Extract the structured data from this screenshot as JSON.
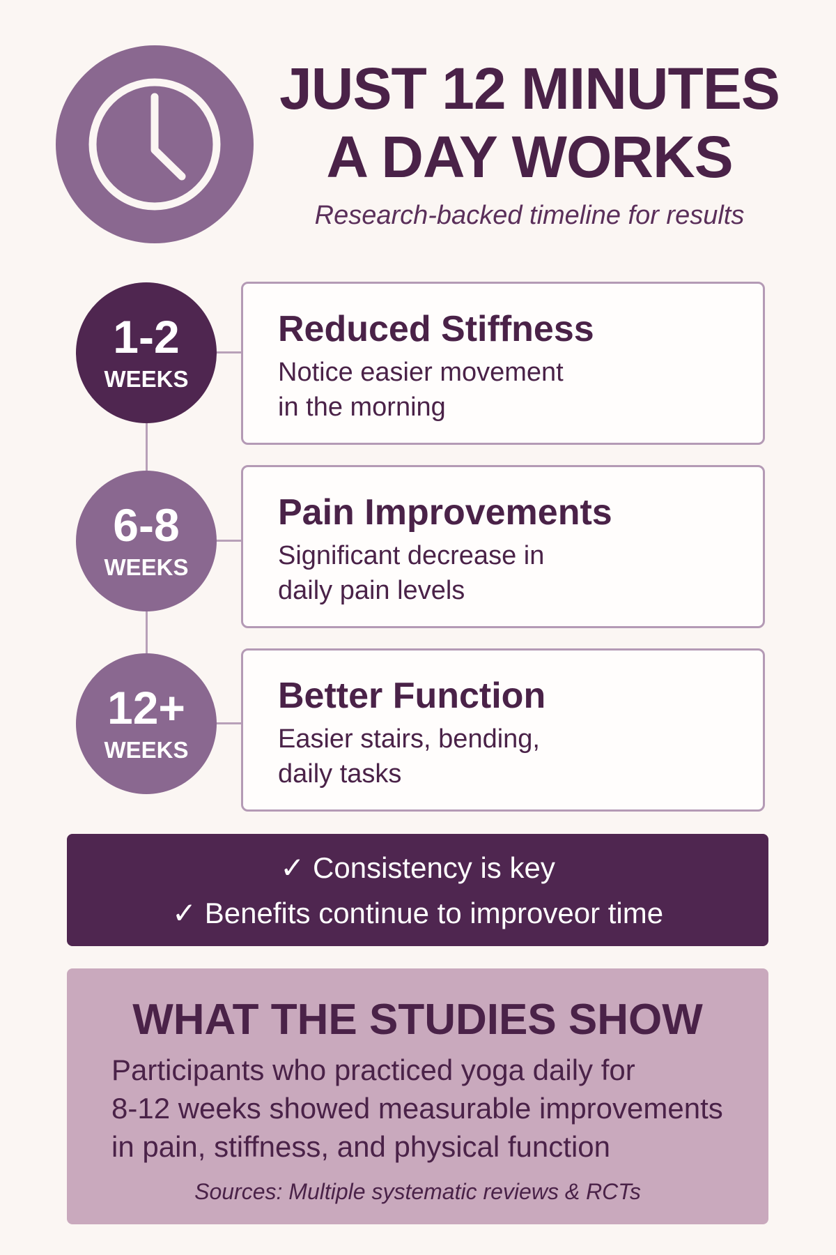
{
  "header": {
    "title_line1": "JUST 12 MINUTES",
    "title_line2": "A DAY WORKS",
    "subtitle": "Research-backed timeline for results",
    "icon": "clock-icon"
  },
  "timeline": [
    {
      "num": "1-2",
      "unit": "WEEKS",
      "title": "Reduced Stiffness",
      "desc1": "Notice easier movement",
      "desc2": "in the morning",
      "color": "#4f2650"
    },
    {
      "num": "6-8",
      "unit": "WEEKS",
      "title": "Pain Improvements",
      "desc1": "Significant decrease in",
      "desc2": "daily pain levels",
      "color": "#8a6890"
    },
    {
      "num": "12+",
      "unit": "WEEKS",
      "title": "Better Function",
      "desc1": "Easier stairs, bending,",
      "desc2": "daily tasks",
      "color": "#8a6890"
    }
  ],
  "key_points": [
    "✓ Consistency is key",
    "✓ Benefits continue to improveor time"
  ],
  "studies": {
    "heading": "WHAT THE STUDIES SHOW",
    "body_lines": [
      "Participants who practiced yoga daily for",
      "8-12 weeks showed measurable improvements",
      "in pain, stiffness, and physical function"
    ],
    "sources": "Sources: Multiple systematic reviews & RCTs"
  },
  "colors": {
    "background": "#fbf6f3",
    "dark_purple": "#4f2650",
    "mid_purple": "#8a6890",
    "light_mauve": "#c9a9bd"
  }
}
